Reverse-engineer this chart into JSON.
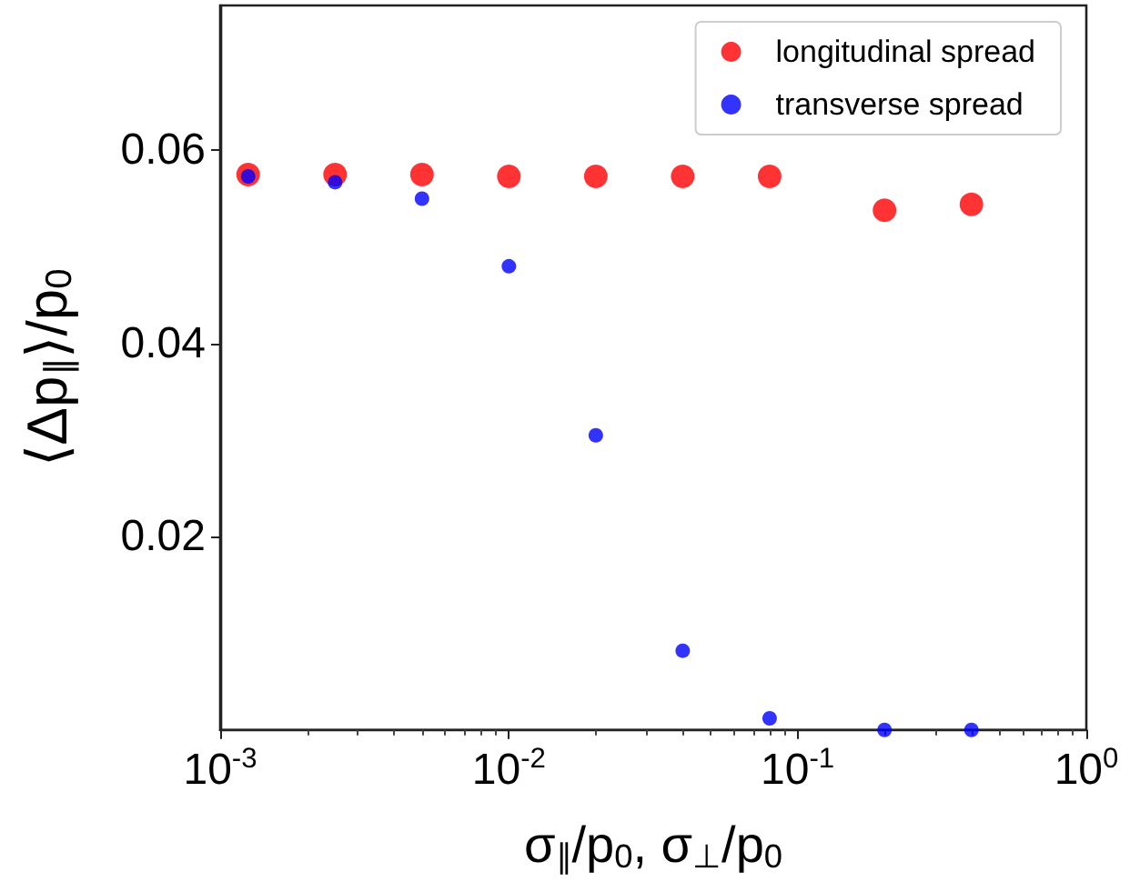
{
  "chart_data": {
    "type": "scatter",
    "xlabel": "σ$_{∥}$/p$_{0}$, σ$_{⊥}$/p$_{0}$",
    "ylabel": "⟨Δp$_{∥}$⟩/p$_{0}$",
    "x": [
      0.00125,
      0.0025,
      0.005,
      0.01,
      0.02,
      0.04,
      0.08,
      0.2,
      0.4
    ],
    "series": [
      {
        "name": "longitudinal spread",
        "color": "#ff0000",
        "values": [
          0.0575,
          0.0575,
          0.0575,
          0.0573,
          0.0573,
          0.0573,
          0.0573,
          0.0538,
          0.0544
        ]
      },
      {
        "name": "transverse spread",
        "color": "#0000ff",
        "values": [
          0.0573,
          0.0567,
          0.055,
          0.048,
          0.0305,
          0.0082,
          0.0012,
          0,
          0
        ]
      }
    ],
    "log": "x",
    "xlim": [
      0.001,
      1
    ],
    "ylim": [
      0,
      0.075
    ],
    "xticks": [
      {
        "value": 0.001,
        "label": "10$^{-3}$"
      },
      {
        "value": 0.01,
        "label": "10$^{-2}$"
      },
      {
        "value": 0.1,
        "label": "10$^{-1}$"
      },
      {
        "value": 1,
        "label": "10$^{0}$"
      }
    ],
    "yticks": [
      0.02,
      0.04,
      0.06
    ],
    "legend": "top right",
    "marker": "circle",
    "grid": false
  }
}
